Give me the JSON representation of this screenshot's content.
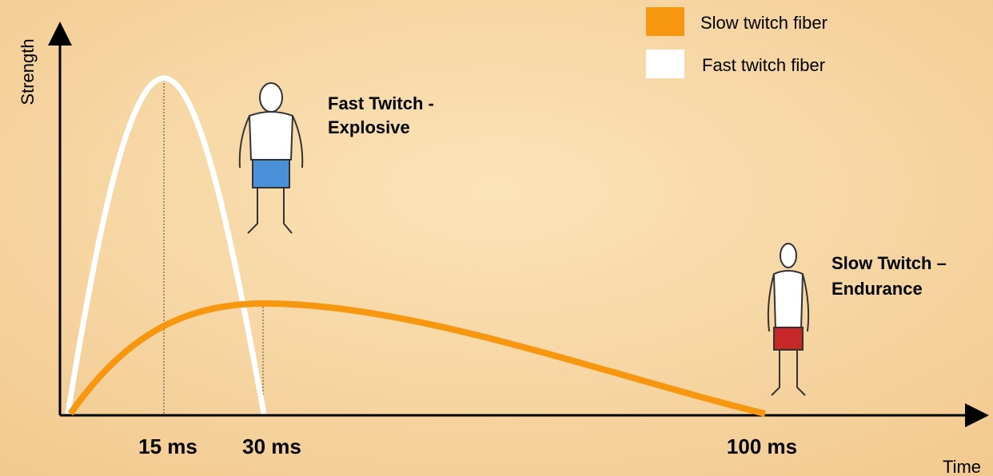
{
  "axes": {
    "y_label": "Strength",
    "x_label": "Time"
  },
  "x_ticks": [
    "15 ms",
    "30 ms",
    "100 ms"
  ],
  "legend": [
    {
      "label": "Slow twitch fiber"
    },
    {
      "label": "Fast twitch fiber"
    }
  ],
  "annotations": {
    "fast": [
      "Fast Twitch -",
      "Explosive"
    ],
    "slow": [
      "Slow Twitch –",
      "Endurance"
    ]
  }
}
